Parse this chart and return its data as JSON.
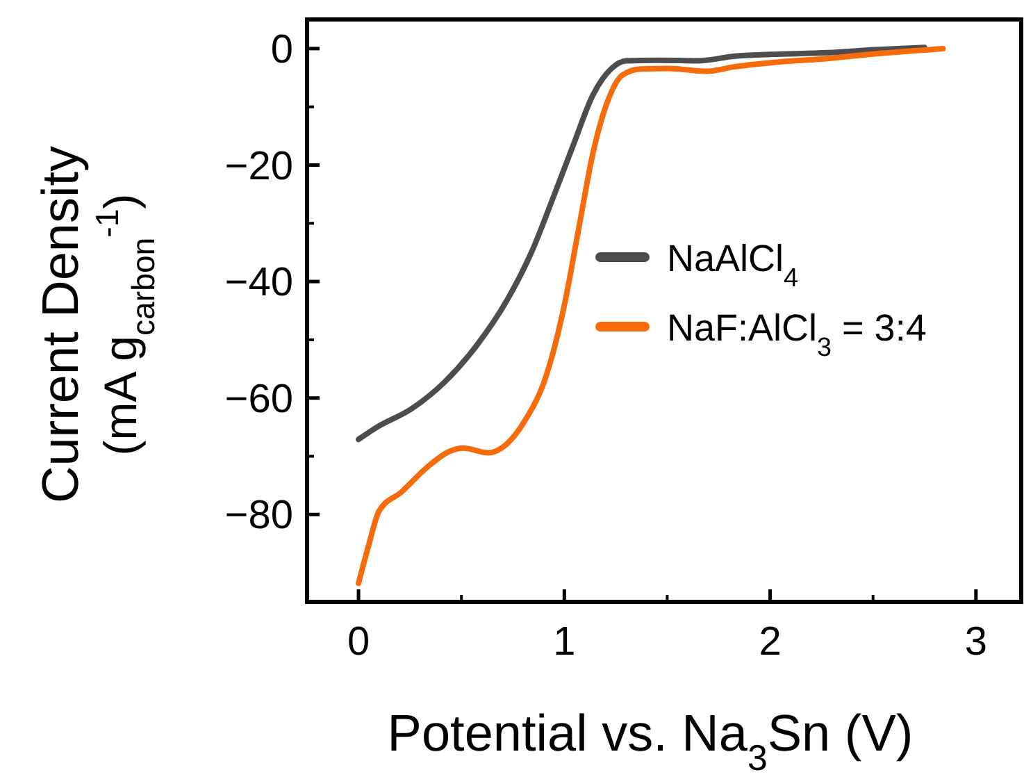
{
  "chart_data": {
    "type": "line",
    "xlabel": "Potential vs. Na$_{3}$Sn (V)",
    "ylabel": "Current Density\n(mA g$_{carbon}$$^{-1}$)",
    "xlim": [
      -0.25,
      3.22
    ],
    "xticks": [
      0,
      1,
      2,
      3
    ],
    "ylim": [
      -95,
      5
    ],
    "yticks": [
      0,
      -20,
      -40,
      -60,
      -80
    ],
    "legend": "right",
    "grid": false,
    "line_style": "solid",
    "marker": "none",
    "series": [
      {
        "name": "NaAlCl$_{4}$",
        "color": "#4d4d4d",
        "x": [
          0,
          0.09,
          0.26,
          0.42,
          0.58,
          0.72,
          0.84,
          0.95,
          1.04,
          1.14,
          1.23,
          1.3,
          1.46,
          1.65,
          1.83,
          2,
          2.28,
          2.51,
          2.75
        ],
        "values": [
          -67.1,
          -65,
          -61.8,
          -57.2,
          -50.7,
          -43.3,
          -35,
          -25.2,
          -16.9,
          -7.9,
          -3.4,
          -2.1,
          -2,
          -2.1,
          -1.3,
          -1,
          -0.7,
          -0.2,
          0.2
        ]
      },
      {
        "name": "NaF:AlCl$_{3}$ = 3:4",
        "color": "#f76b0a",
        "x": [
          0,
          0.05,
          0.1,
          0.21,
          0.33,
          0.44,
          0.51,
          0.63,
          0.72,
          0.81,
          0.91,
          1,
          1.07,
          1.14,
          1.21,
          1.28,
          1.37,
          1.51,
          1.69,
          1.83,
          2.04,
          2.28,
          2.51,
          2.84
        ],
        "values": [
          -91.8,
          -85.2,
          -79.4,
          -76.1,
          -72,
          -69.2,
          -68.6,
          -69.4,
          -67.9,
          -63.8,
          -56.4,
          -44.1,
          -30.9,
          -17.8,
          -9.1,
          -4.6,
          -3.5,
          -3.4,
          -3.9,
          -3.1,
          -2.3,
          -1.7,
          -0.9,
          0
        ]
      }
    ]
  }
}
